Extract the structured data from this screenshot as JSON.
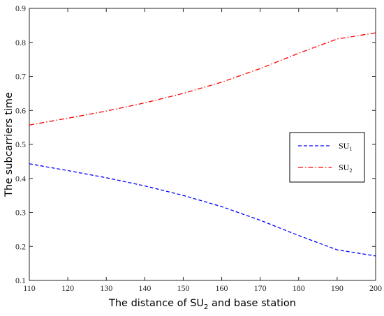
{
  "chart_data": {
    "type": "line",
    "title": "",
    "xlabel": "The distance of SU",
    "xlabel_sub": "2",
    "xlabel_suffix": " and base station",
    "ylabel": "The subcarriers time",
    "xlim": [
      110,
      200
    ],
    "ylim": [
      0.1,
      0.9
    ],
    "xticks": [
      110,
      120,
      130,
      140,
      150,
      160,
      170,
      180,
      190,
      200
    ],
    "yticks": [
      0.1,
      0.2,
      0.3,
      0.4,
      0.5,
      0.6,
      0.7,
      0.8,
      0.9
    ],
    "grid": false,
    "legend_position": "right",
    "x": [
      110,
      120,
      130,
      140,
      150,
      160,
      170,
      180,
      190,
      200
    ],
    "series": [
      {
        "name": "SU",
        "name_sub": "1",
        "color": "#0000ff",
        "style": "dashed",
        "values": [
          0.443,
          0.423,
          0.402,
          0.378,
          0.35,
          0.317,
          0.277,
          0.232,
          0.19,
          0.172
        ]
      },
      {
        "name": "SU",
        "name_sub": "2",
        "color": "#ff0000",
        "style": "dashdot",
        "values": [
          0.557,
          0.577,
          0.598,
          0.622,
          0.65,
          0.683,
          0.723,
          0.768,
          0.81,
          0.828
        ]
      }
    ]
  }
}
